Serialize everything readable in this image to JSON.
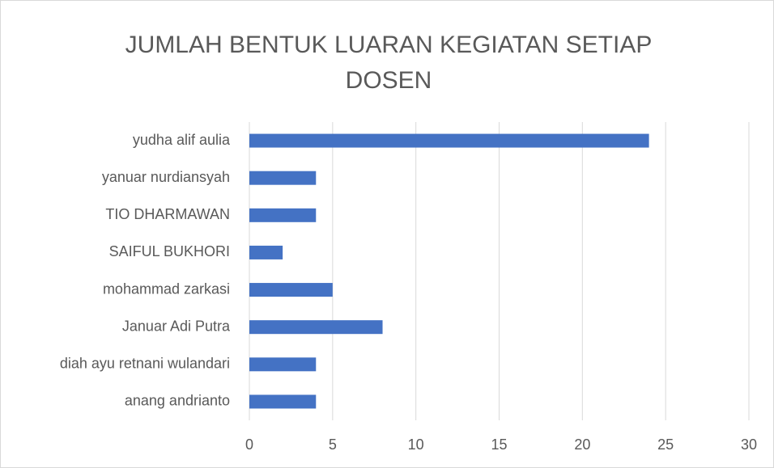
{
  "chart_data": {
    "type": "bar",
    "orientation": "horizontal",
    "title": "JUMLAH BENTUK LUARAN KEGIATAN SETIAP DOSEN",
    "categories": [
      "yudha alif aulia",
      "yanuar nurdiansyah",
      "TIO DHARMAWAN",
      "SAIFUL BUKHORI",
      "mohammad zarkasi",
      "Januar Adi Putra",
      "diah ayu retnani wulandari",
      "anang andrianto"
    ],
    "values": [
      24,
      4,
      4,
      2,
      5,
      8,
      4,
      4
    ],
    "color": "#4472c4",
    "xlim": [
      0,
      30
    ],
    "xticks": [
      0,
      5,
      10,
      15,
      20,
      25,
      30
    ],
    "grid": true
  }
}
